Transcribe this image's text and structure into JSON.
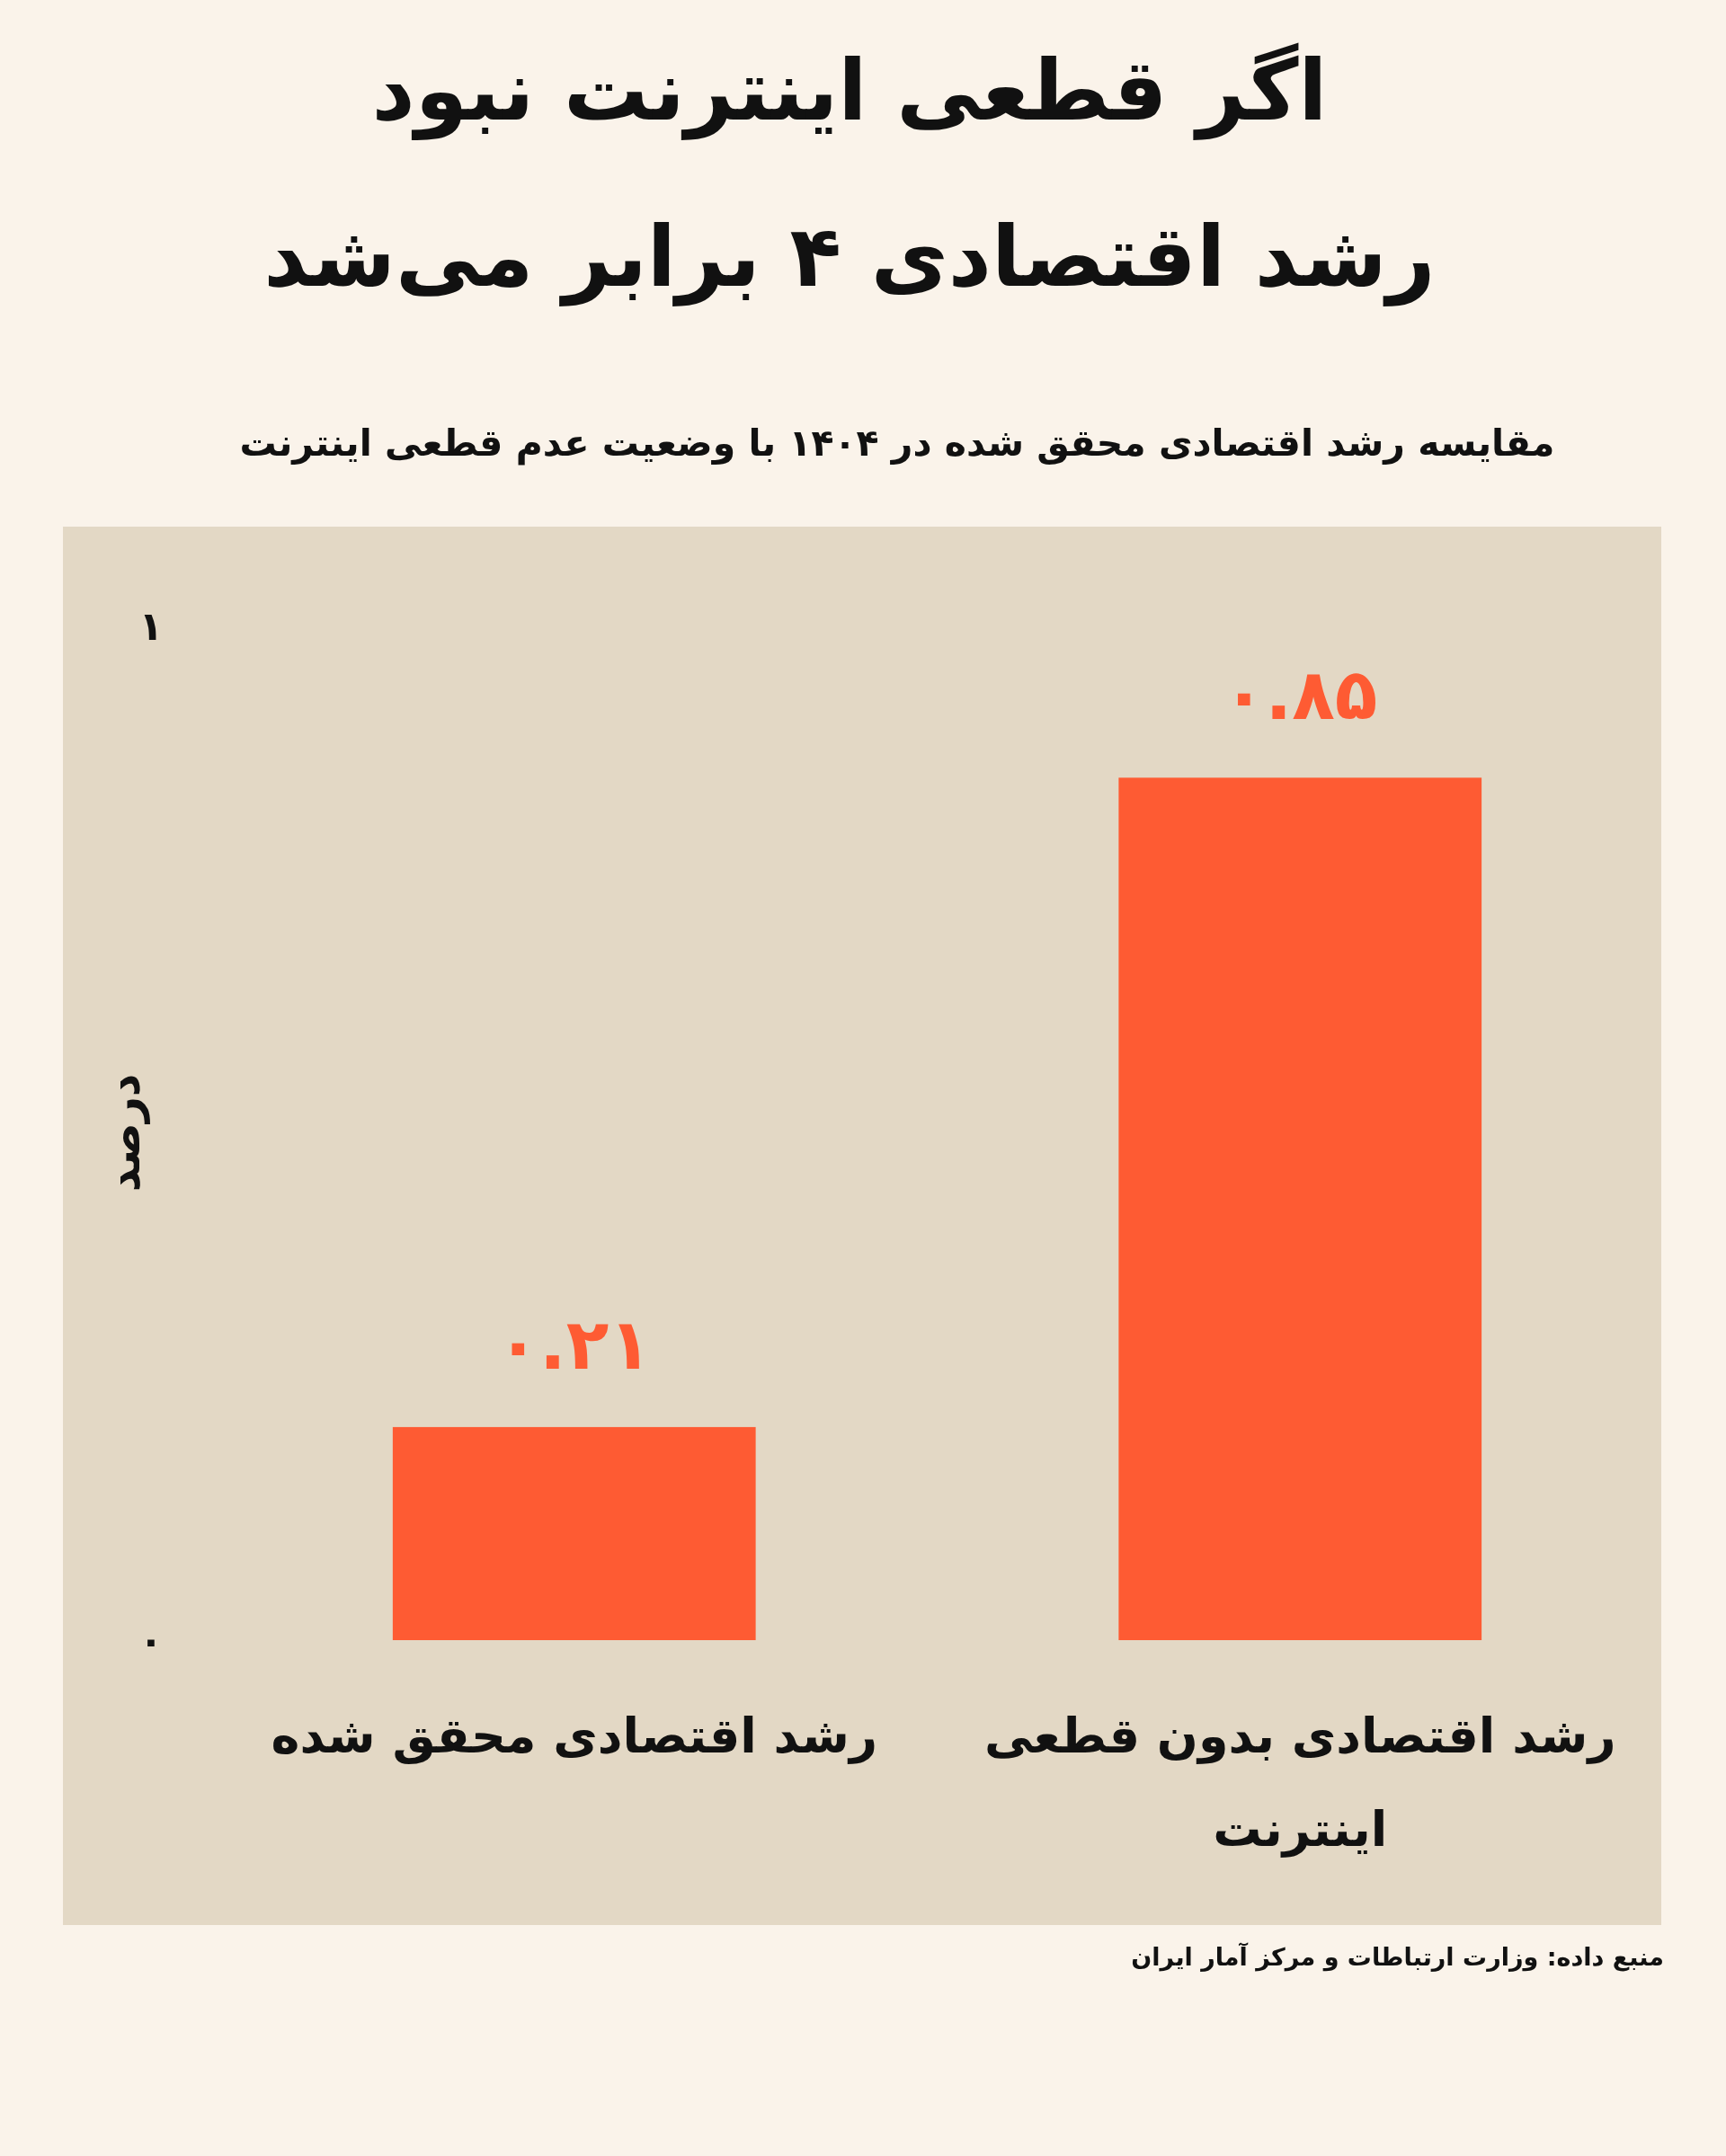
{
  "chart_data": {
    "type": "bar",
    "title": "اگر قطعی اینترنت نبود\nرشد اقتصادی ۴ برابر می‌شد",
    "subtitle": "مقایسه رشد اقتصادی محقق شده در ۱۴۰۴ با وضعیت عدم قطعی اینترنت",
    "ylabel": "درصد",
    "categories": [
      "رشد اقتصادی محقق شده",
      "رشد اقتصادی بدون قطعی اینترنت"
    ],
    "values": [
      0.21,
      0.85
    ],
    "value_labels": [
      "۰.۲۱",
      "۰.۸۵"
    ],
    "color": "#fe5b33",
    "ylim": [
      0,
      1
    ],
    "yticks": [
      {
        "value": 0,
        "label": "۰"
      },
      {
        "value": 1,
        "label": "۱"
      }
    ],
    "annotations": [
      "منبع داده: وزارت ارتباطات و مرکز آمار ایران"
    ]
  }
}
